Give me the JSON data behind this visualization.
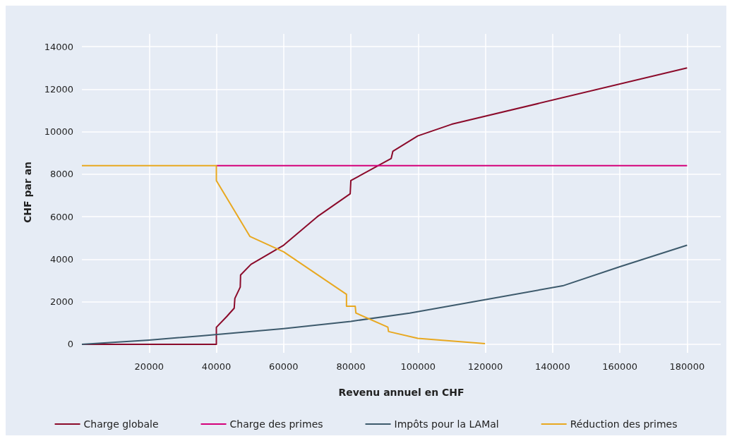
{
  "chart_data": {
    "type": "line",
    "xlabel": "Revenu annuel en CHF",
    "ylabel": "CHF par an",
    "xlim": [
      0,
      190000
    ],
    "xticks": [
      20000,
      40000,
      60000,
      80000,
      100000,
      120000,
      140000,
      160000,
      180000
    ],
    "ylim": [
      -300,
      14600
    ],
    "yticks": [
      0,
      2000,
      4000,
      6000,
      8000,
      10000,
      12000,
      14000
    ],
    "grid": true,
    "legend": "bottom",
    "marker": "none",
    "line_style": "solid",
    "series": [
      {
        "name": "Charge globale",
        "color": "#8b0a2a",
        "x": [
          0,
          40000,
          40000,
          43100,
          45300,
          45500,
          47100,
          47200,
          50300,
          60000,
          70000,
          79800,
          80000,
          92000,
          92500,
          99900,
          110000,
          180000
        ],
        "values": [
          0,
          0,
          800,
          1310,
          1700,
          2160,
          2690,
          3260,
          3760,
          4660,
          6000,
          7080,
          7700,
          8740,
          9080,
          9800,
          10350,
          13000
        ]
      },
      {
        "name": "Charge des primes",
        "color": "#d4007a",
        "x": [
          40000,
          180000
        ],
        "values": [
          8400,
          8400
        ]
      },
      {
        "name": "Impôts pour la LAMal",
        "color": "#3d5a6c",
        "x": [
          0,
          20000,
          35500,
          60000,
          80000,
          97500,
          119900,
          143000,
          160000,
          180000
        ],
        "values": [
          0,
          200,
          400,
          740,
          1080,
          1470,
          2100,
          2750,
          3650,
          4660
        ]
      },
      {
        "name": "Réduction des primes",
        "color": "#e8a820",
        "x": [
          0,
          40000,
          40000,
          50000,
          60000,
          78700,
          78700,
          81300,
          81500,
          91000,
          91200,
          99900,
          119900
        ],
        "values": [
          8400,
          8400,
          7700,
          5070,
          4350,
          2350,
          1790,
          1790,
          1470,
          810,
          600,
          280,
          30
        ]
      }
    ]
  }
}
